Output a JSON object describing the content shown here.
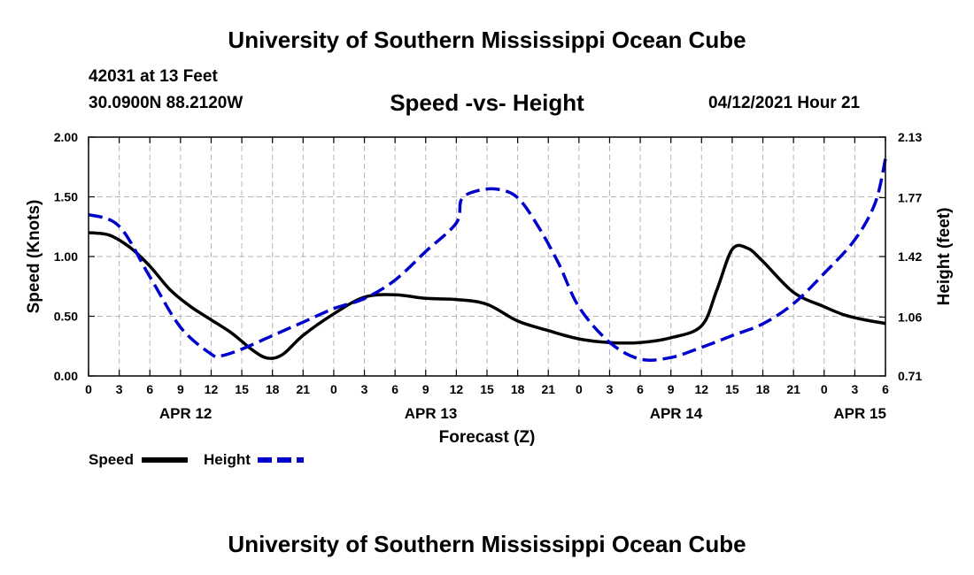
{
  "header": {
    "title": "University of Southern Mississippi Ocean Cube",
    "station": "42031 at 13 Feet",
    "coords": "30.0900N  88.2120W",
    "subtitle": "Speed -vs- Height",
    "datetime": "04/12/2021 Hour 21"
  },
  "footer": {
    "title": "University of Southern Mississippi Ocean Cube"
  },
  "colors": {
    "speed": "#000000",
    "height": "#0000cc",
    "grid": "#b4b4b4"
  },
  "chart_data": {
    "type": "line",
    "title": "Speed -vs- Height",
    "xlabel": "Forecast (Z)",
    "ylabel": "Speed (Knots)",
    "y2label": "Height (feet)",
    "x_unit": "forecast hours from APR 12 00Z",
    "xlim": [
      0,
      78
    ],
    "ylim": [
      0,
      2
    ],
    "y2lim": [
      0.71,
      2.13
    ],
    "x_ticks": [
      0,
      3,
      6,
      9,
      12,
      15,
      18,
      21,
      24,
      27,
      30,
      33,
      36,
      39,
      42,
      45,
      48,
      51,
      54,
      57,
      60,
      63,
      66,
      69,
      72,
      75,
      78
    ],
    "x_tick_labels": [
      "0",
      "3",
      "6",
      "9",
      "12",
      "15",
      "18",
      "21",
      "0",
      "3",
      "6",
      "9",
      "12",
      "15",
      "18",
      "21",
      "0",
      "3",
      "6",
      "9",
      "12",
      "15",
      "18",
      "21",
      "0",
      "3",
      "6"
    ],
    "y_ticks": [
      0,
      0.5,
      1.0,
      1.5,
      2.0
    ],
    "y_tick_labels": [
      "0.00",
      "0.50",
      "1.00",
      "1.50",
      "2.00"
    ],
    "y2_ticks": [
      0.71,
      1.06,
      1.42,
      1.77,
      2.13
    ],
    "y2_tick_labels": [
      "0.71",
      "1.06",
      "1.42",
      "1.77",
      "2.13"
    ],
    "day_labels": [
      {
        "x": 9.5,
        "label": "APR 12"
      },
      {
        "x": 33.5,
        "label": "APR 13"
      },
      {
        "x": 57.5,
        "label": "APR 14"
      },
      {
        "x": 75.5,
        "label": "APR 15"
      }
    ],
    "legend": [
      {
        "name": "Speed",
        "style": "solid"
      },
      {
        "name": "Height",
        "style": "dashed"
      }
    ],
    "series": [
      {
        "name": "Speed",
        "axis": "left",
        "style": "solid",
        "x": [
          0,
          2,
          4,
          6,
          8,
          10,
          12,
          14,
          16,
          17.5,
          19,
          21,
          24,
          27,
          30,
          33,
          36,
          39,
          42,
          45,
          48,
          51,
          54,
          57,
          60,
          61.5,
          63,
          64.5,
          66,
          69,
          72,
          74,
          76,
          78
        ],
        "y": [
          1.2,
          1.18,
          1.08,
          0.92,
          0.72,
          0.58,
          0.47,
          0.36,
          0.22,
          0.15,
          0.18,
          0.34,
          0.52,
          0.66,
          0.68,
          0.65,
          0.64,
          0.6,
          0.46,
          0.38,
          0.31,
          0.28,
          0.28,
          0.32,
          0.42,
          0.72,
          1.06,
          1.07,
          0.96,
          0.7,
          0.58,
          0.51,
          0.47,
          0.44
        ]
      },
      {
        "name": "Height",
        "axis": "right",
        "style": "dashed",
        "x": [
          0,
          3,
          6,
          9,
          12,
          13,
          15,
          18,
          21,
          24,
          27,
          30,
          33,
          36,
          36.5,
          38,
          40,
          42,
          44,
          46,
          48,
          51,
          54,
          57,
          60,
          63,
          66,
          69,
          72,
          75,
          77,
          78
        ],
        "y": [
          1.67,
          1.6,
          1.3,
          1.0,
          0.84,
          0.83,
          0.87,
          0.95,
          1.03,
          1.11,
          1.17,
          1.28,
          1.45,
          1.62,
          1.76,
          1.81,
          1.82,
          1.77,
          1.6,
          1.38,
          1.12,
          0.91,
          0.81,
          0.82,
          0.88,
          0.95,
          1.02,
          1.14,
          1.32,
          1.52,
          1.74,
          2.0
        ]
      }
    ]
  }
}
